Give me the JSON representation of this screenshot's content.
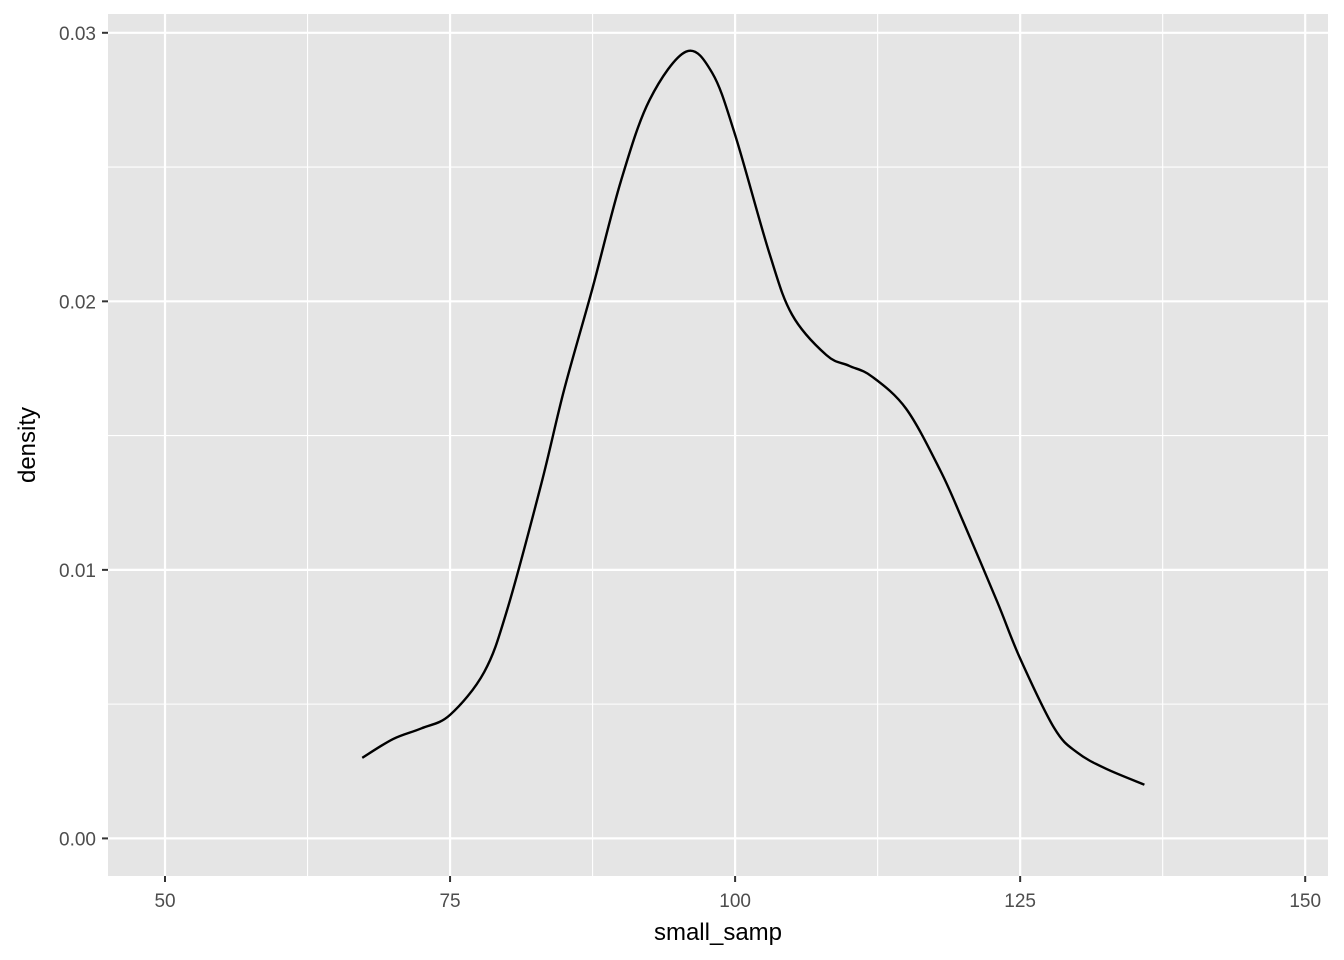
{
  "chart_data": {
    "type": "line",
    "title": "",
    "xlabel": "small_samp",
    "ylabel": "density",
    "xlim": [
      45,
      152
    ],
    "ylim": [
      -0.0014,
      0.0307
    ],
    "x_ticks": [
      50,
      75,
      100,
      125,
      150
    ],
    "x_tick_labels": [
      "50",
      "75",
      "100",
      "125",
      "150"
    ],
    "y_ticks": [
      0.0,
      0.01,
      0.02,
      0.03
    ],
    "y_tick_labels": [
      "0.00",
      "0.01",
      "0.02",
      "0.03"
    ],
    "grid": true,
    "legend": "none",
    "colors": {
      "panel": "#e5e5e5",
      "grid": "#ffffff",
      "line": "#000000",
      "tick_text": "#4d4d4d"
    },
    "series": [
      {
        "x": [
          67.3,
          70,
          72.5,
          75,
          78,
          80,
          83,
          85,
          87.5,
          90,
          92.5,
          95.7,
          98,
          100,
          103,
          105,
          108,
          110,
          112,
          115,
          118,
          120,
          123,
          125,
          128,
          130,
          132.5,
          135.9
        ],
        "y": [
          0.003,
          0.0037,
          0.0041,
          0.0046,
          0.0062,
          0.0085,
          0.0132,
          0.0167,
          0.0205,
          0.0245,
          0.0275,
          0.0293,
          0.0285,
          0.0262,
          0.0218,
          0.0195,
          0.018,
          0.0176,
          0.0172,
          0.016,
          0.0137,
          0.0118,
          0.0088,
          0.0067,
          0.0041,
          0.0032,
          0.0026,
          0.002
        ]
      }
    ]
  }
}
